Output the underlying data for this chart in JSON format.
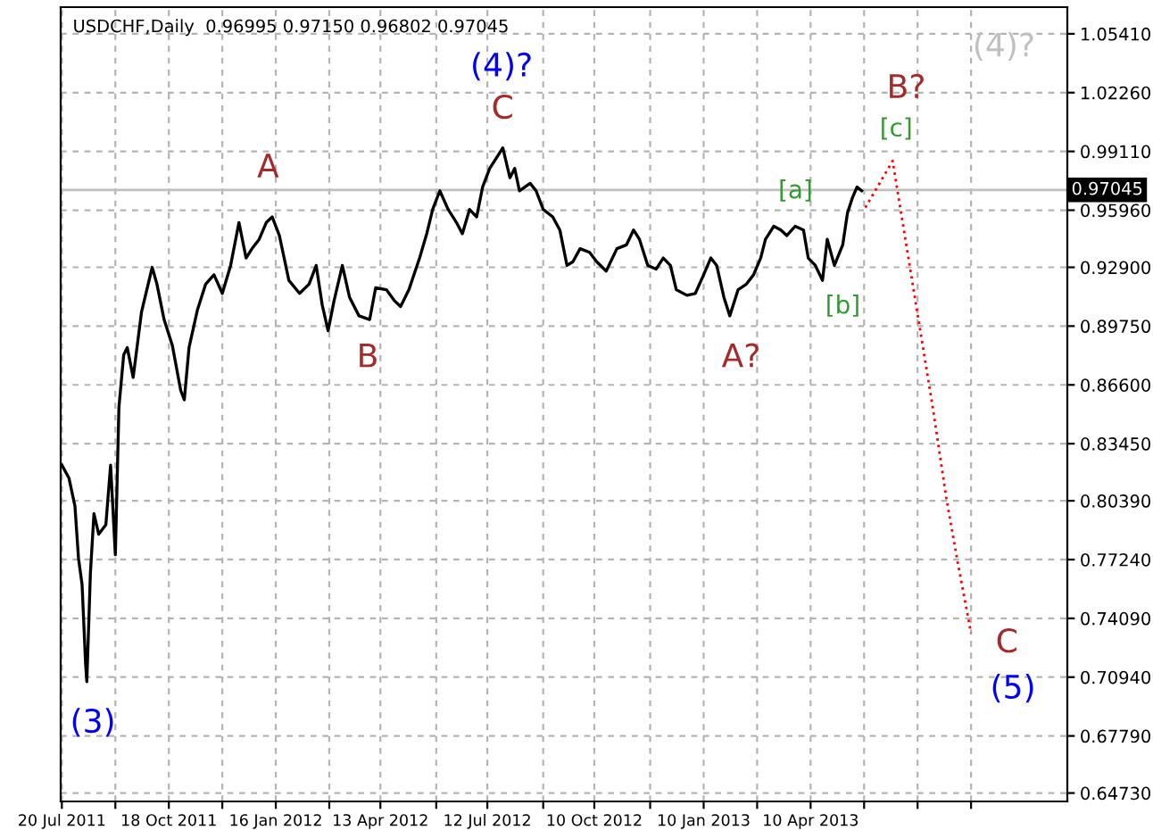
{
  "chart_data": {
    "type": "line",
    "title": "USDCHF,Daily  0.96995 0.97150 0.96802 0.97045",
    "series": [
      {
        "color": "#000000",
        "line_style": "solid",
        "x": [
          "2011-07-20",
          "2011-07-26",
          "2011-07-31",
          "2011-08-03",
          "2011-08-06",
          "2011-08-09",
          "2011-08-10",
          "2011-08-13",
          "2011-08-16",
          "2011-08-20",
          "2011-08-26",
          "2011-08-30",
          "2011-09-03",
          "2011-09-06",
          "2011-09-10",
          "2011-09-13",
          "2011-09-18",
          "2011-09-25",
          "2011-10-04",
          "2011-10-08",
          "2011-10-14",
          "2011-10-21",
          "2011-10-28",
          "2011-10-31",
          "2011-11-04",
          "2011-11-11",
          "2011-11-18",
          "2011-11-25",
          "2011-12-02",
          "2011-12-09",
          "2011-12-16",
          "2011-12-22",
          "2011-12-27",
          "2012-01-02",
          "2012-01-08",
          "2012-01-13",
          "2012-01-19",
          "2012-01-27",
          "2012-02-05",
          "2012-02-13",
          "2012-02-19",
          "2012-02-24",
          "2012-02-29",
          "2012-03-05",
          "2012-03-12",
          "2012-03-18",
          "2012-03-26",
          "2012-04-04",
          "2012-04-09",
          "2012-04-18",
          "2012-04-25",
          "2012-04-30",
          "2012-05-07",
          "2012-05-16",
          "2012-05-22",
          "2012-05-27",
          "2012-06-02",
          "2012-06-09",
          "2012-06-16",
          "2012-06-21",
          "2012-06-27",
          "2012-07-03",
          "2012-07-08",
          "2012-07-14",
          "2012-07-21",
          "2012-07-25",
          "2012-07-31",
          "2012-08-04",
          "2012-08-08",
          "2012-08-17",
          "2012-08-22",
          "2012-08-28",
          "2012-09-05",
          "2012-09-11",
          "2012-09-17",
          "2012-09-22",
          "2012-09-28",
          "2012-10-06",
          "2012-10-12",
          "2012-10-20",
          "2012-10-29",
          "2012-11-06",
          "2012-11-12",
          "2012-11-17",
          "2012-11-24",
          "2012-12-01",
          "2012-12-07",
          "2012-12-13",
          "2012-12-18",
          "2012-12-27",
          "2013-01-03",
          "2013-01-10",
          "2013-01-16",
          "2013-01-21",
          "2013-01-27",
          "2013-02-01",
          "2013-02-08",
          "2013-02-15",
          "2013-02-21",
          "2013-02-27",
          "2013-03-03",
          "2013-03-10",
          "2013-03-16",
          "2013-03-21",
          "2013-03-28",
          "2013-04-04",
          "2013-04-08",
          "2013-04-14",
          "2013-04-20",
          "2013-04-24",
          "2013-04-30",
          "2013-05-07",
          "2013-05-11",
          "2013-05-15",
          "2013-05-19",
          "2013-05-23"
        ],
        "values": [
          0.823,
          0.816,
          0.801,
          0.773,
          0.759,
          0.716,
          0.707,
          0.765,
          0.797,
          0.786,
          0.791,
          0.823,
          0.775,
          0.854,
          0.882,
          0.886,
          0.87,
          0.905,
          0.929,
          0.92,
          0.901,
          0.887,
          0.863,
          0.858,
          0.886,
          0.906,
          0.92,
          0.925,
          0.915,
          0.93,
          0.953,
          0.934,
          0.939,
          0.944,
          0.953,
          0.956,
          0.946,
          0.922,
          0.915,
          0.92,
          0.93,
          0.909,
          0.895,
          0.911,
          0.93,
          0.913,
          0.903,
          0.901,
          0.918,
          0.917,
          0.911,
          0.908,
          0.917,
          0.934,
          0.947,
          0.96,
          0.97,
          0.96,
          0.953,
          0.947,
          0.96,
          0.956,
          0.972,
          0.982,
          0.989,
          0.993,
          0.977,
          0.982,
          0.97,
          0.974,
          0.97,
          0.96,
          0.956,
          0.949,
          0.93,
          0.932,
          0.939,
          0.937,
          0.932,
          0.927,
          0.939,
          0.941,
          0.949,
          0.944,
          0.93,
          0.928,
          0.934,
          0.93,
          0.917,
          0.914,
          0.915,
          0.925,
          0.934,
          0.93,
          0.913,
          0.903,
          0.917,
          0.92,
          0.925,
          0.934,
          0.944,
          0.951,
          0.949,
          0.946,
          0.951,
          0.949,
          0.934,
          0.93,
          0.922,
          0.944,
          0.93,
          0.941,
          0.958,
          0.966,
          0.972,
          0.97
        ]
      },
      {
        "color": "#ff0000",
        "line_style": "dotted",
        "x": [
          "2013-05-26",
          "2013-06-18",
          "2013-07-22",
          "2013-08-02",
          "2013-08-12",
          "2013-08-23"
        ],
        "values": [
          0.961,
          0.986,
          0.853,
          0.806,
          0.77,
          0.733
        ]
      }
    ],
    "xlim": [
      "2011-07-19",
      "2013-11-12"
    ],
    "xticks": [
      {
        "value": "2011-07-20",
        "label": "20 Jul 2011"
      },
      {
        "value": "2011-09-03",
        "label": null
      },
      {
        "value": "2011-10-18",
        "label": "18 Oct 2011"
      },
      {
        "value": "2011-12-02",
        "label": null
      },
      {
        "value": "2012-01-16",
        "label": "16 Jan 2012"
      },
      {
        "value": "2012-03-01",
        "label": null
      },
      {
        "value": "2012-04-13",
        "label": "13 Apr 2012"
      },
      {
        "value": "2012-05-30",
        "label": null
      },
      {
        "value": "2012-07-12",
        "label": "12 Jul 2012"
      },
      {
        "value": "2012-08-28",
        "label": null
      },
      {
        "value": "2012-10-10",
        "label": "10 Oct 2012"
      },
      {
        "value": "2012-11-26",
        "label": null
      },
      {
        "value": "2013-01-10",
        "label": "10 Jan 2013"
      },
      {
        "value": "2013-02-24",
        "label": null
      },
      {
        "value": "2013-04-10",
        "label": "10 Apr 2013"
      },
      {
        "value": "2013-05-25",
        "label": null
      },
      {
        "value": "2013-07-09",
        "label": null
      },
      {
        "value": "2013-08-23",
        "label": null
      }
    ],
    "ylim": [
      0.6428,
      1.0684
    ],
    "yticks": [
      {
        "value": 1.0541,
        "label": "1.05410"
      },
      {
        "value": 1.0226,
        "label": "1.02260"
      },
      {
        "value": 0.9911,
        "label": "0.99110"
      },
      {
        "value": 0.9596,
        "label": "0.95960"
      },
      {
        "value": 0.929,
        "label": "0.92900"
      },
      {
        "value": 0.8975,
        "label": "0.89750"
      },
      {
        "value": 0.866,
        "label": "0.86600"
      },
      {
        "value": 0.8345,
        "label": "0.83450"
      },
      {
        "value": 0.8039,
        "label": "0.80390"
      },
      {
        "value": 0.7724,
        "label": "0.77240"
      },
      {
        "value": 0.7409,
        "label": "0.74090"
      },
      {
        "value": 0.7094,
        "label": "0.70940"
      },
      {
        "value": 0.6779,
        "label": "0.67790"
      },
      {
        "value": 0.6473,
        "label": "0.64730"
      }
    ],
    "grid": true,
    "ref_lines": [
      {
        "axis": "y",
        "value": 0.97045,
        "label": "0.97045",
        "color": "#c0c0c0"
      }
    ],
    "annotations": [
      "(3)",
      "A",
      "B",
      "(4)?",
      "C",
      "A?",
      "[a]",
      "[b]",
      "[c]",
      "B?",
      "(4)?",
      "C",
      "(5)"
    ]
  }
}
